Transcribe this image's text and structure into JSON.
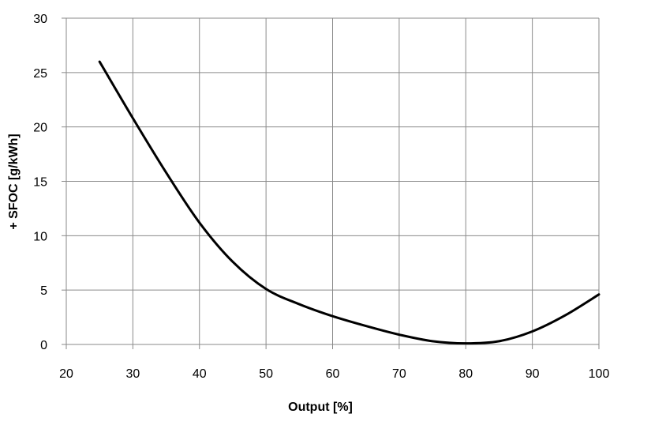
{
  "chart_data": {
    "type": "line",
    "title": "",
    "xlabel": "Output [%]",
    "ylabel": "+ SFOC [g/kWh]",
    "xlim": [
      20,
      100
    ],
    "ylim": [
      0,
      30
    ],
    "x_ticks": [
      20,
      30,
      40,
      50,
      60,
      70,
      80,
      90,
      100
    ],
    "y_ticks": [
      0,
      5,
      10,
      15,
      20,
      25,
      30
    ],
    "grid": true,
    "legend": "none",
    "line_color": "#000000",
    "series": [
      {
        "x": [
          25,
          30,
          35,
          40,
          45,
          50,
          55,
          60,
          65,
          70,
          75,
          80,
          85,
          90,
          95,
          100
        ],
        "y": [
          26,
          20.8,
          15.8,
          11.2,
          7.6,
          5.1,
          3.7,
          2.6,
          1.7,
          0.9,
          0.3,
          0.1,
          0.3,
          1.2,
          2.7,
          4.6
        ]
      }
    ]
  }
}
